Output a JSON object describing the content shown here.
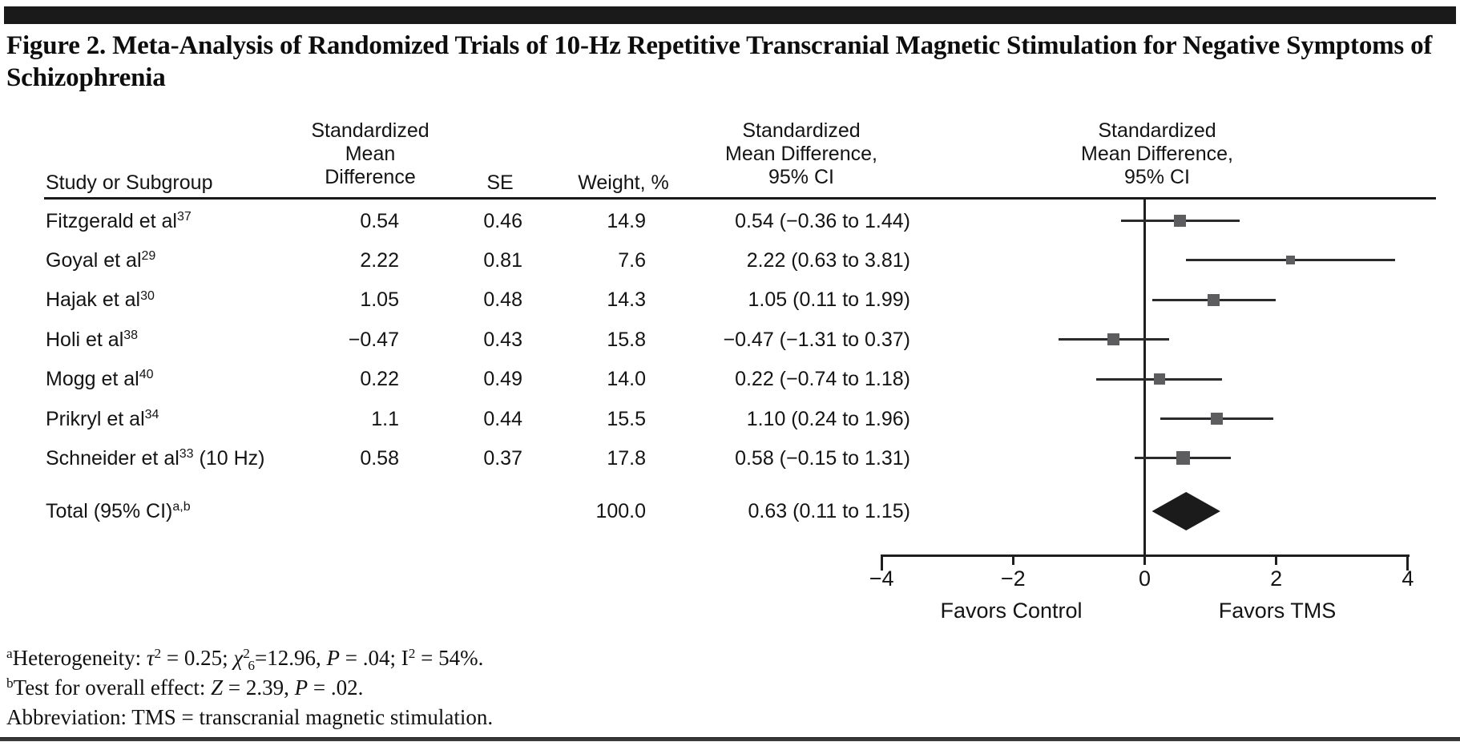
{
  "title": "Figure 2. Meta-Analysis of Randomized Trials of 10-Hz Repetitive Transcranial Magnetic Stimulation for Negative Symptoms of Schizophrenia",
  "table": {
    "headers": {
      "study": "Study or Subgroup",
      "smd": "Standardized\nMean\nDifference",
      "se": "SE",
      "weight": "Weight, %",
      "ci_text": "Standardized\nMean Difference,\n95% CI",
      "ci_plot": "Standardized\nMean Difference,\n95% CI"
    },
    "rows": [
      {
        "study": "Fitzgerald et al",
        "ref": "37",
        "suffix": "",
        "smd": "0.54",
        "se": "0.46",
        "weight": "14.9",
        "ci": "0.54 (−0.36 to 1.44)"
      },
      {
        "study": "Goyal et al",
        "ref": "29",
        "suffix": "",
        "smd": "2.22",
        "se": "0.81",
        "weight": "7.6",
        "ci": "2.22 (0.63 to 3.81)"
      },
      {
        "study": "Hajak et al",
        "ref": "30",
        "suffix": "",
        "smd": "1.05",
        "se": "0.48",
        "weight": "14.3",
        "ci": "1.05 (0.11 to 1.99)"
      },
      {
        "study": "Holi et al",
        "ref": "38",
        "suffix": "",
        "smd": "−0.47",
        "se": "0.43",
        "weight": "15.8",
        "ci": "−0.47 (−1.31 to 0.37)"
      },
      {
        "study": "Mogg et al",
        "ref": "40",
        "suffix": "",
        "smd": "0.22",
        "se": "0.49",
        "weight": "14.0",
        "ci": "0.22 (−0.74 to 1.18)"
      },
      {
        "study": "Prikryl et al",
        "ref": "34",
        "suffix": "",
        "smd": "1.1",
        "se": "0.44",
        "weight": "15.5",
        "ci": "1.10 (0.24 to 1.96)"
      },
      {
        "study": "Schneider et al",
        "ref": "33",
        "suffix": " (10 Hz)",
        "smd": "0.58",
        "se": "0.37",
        "weight": "17.8",
        "ci": "0.58 (−0.15 to 1.31)"
      }
    ],
    "total": {
      "label": "Total (95% CI)",
      "marks": "a,b",
      "weight": "100.0",
      "ci": "0.63 (0.11 to 1.15)"
    }
  },
  "chart_data": {
    "type": "scatter",
    "subtype": "forest-plot",
    "title": "Standardized Mean Difference, 95% CI",
    "xlim": [
      -4,
      4
    ],
    "x_ticks": [
      -4,
      -2,
      0,
      2,
      4
    ],
    "x_tick_labels": [
      "−4",
      "−2",
      "0",
      "2",
      "4"
    ],
    "zero_line": 0,
    "left_direction_label": "Favors Control",
    "right_direction_label": "Favors TMS",
    "studies": [
      {
        "name": "Fitzgerald et al",
        "ref": "37",
        "est": 0.54,
        "se": 0.46,
        "weight": 14.9,
        "lo": -0.36,
        "hi": 1.44
      },
      {
        "name": "Goyal et al",
        "ref": "29",
        "est": 2.22,
        "se": 0.81,
        "weight": 7.6,
        "lo": 0.63,
        "hi": 3.81
      },
      {
        "name": "Hajak et al",
        "ref": "30",
        "est": 1.05,
        "se": 0.48,
        "weight": 14.3,
        "lo": 0.11,
        "hi": 1.99
      },
      {
        "name": "Holi et al",
        "ref": "38",
        "est": -0.47,
        "se": 0.43,
        "weight": 15.8,
        "lo": -1.31,
        "hi": 0.37
      },
      {
        "name": "Mogg et al",
        "ref": "40",
        "est": 0.22,
        "se": 0.49,
        "weight": 14.0,
        "lo": -0.74,
        "hi": 1.18
      },
      {
        "name": "Prikryl et al",
        "ref": "34",
        "est": 1.1,
        "se": 0.44,
        "weight": 15.5,
        "lo": 0.24,
        "hi": 1.96
      },
      {
        "name": "Schneider et al",
        "ref": "33",
        "suffix": " (10 Hz)",
        "est": 0.58,
        "se": 0.37,
        "weight": 17.8,
        "lo": -0.15,
        "hi": 1.31
      }
    ],
    "total": {
      "label": "Total (95% CI)",
      "est": 0.63,
      "lo": 0.11,
      "hi": 1.15,
      "weight": 100.0
    }
  },
  "footnotes": [
    [
      {
        "t": "a",
        "f": "sup"
      },
      {
        "t": "Heterogeneity: "
      },
      {
        "t": "τ",
        "f": "i"
      },
      {
        "t": "2",
        "f": "sup"
      },
      {
        "t": " = 0.25; "
      },
      {
        "t": "χ",
        "f": "i"
      },
      {
        "t": "2",
        "f": "sup"
      },
      {
        "t": "6",
        "f": "sub"
      },
      {
        "t": "=12.96, "
      },
      {
        "t": "P",
        "f": "i"
      },
      {
        "t": " = .04; I"
      },
      {
        "t": "2",
        "f": "sup"
      },
      {
        "t": " = 54%."
      }
    ],
    [
      {
        "t": "b",
        "f": "sup"
      },
      {
        "t": "Test for overall effect: "
      },
      {
        "t": "Z",
        "f": "i"
      },
      {
        "t": " = 2.39, "
      },
      {
        "t": "P",
        "f": "i"
      },
      {
        "t": " = .02."
      }
    ],
    [
      {
        "t": "Abbreviation: TMS = transcranial magnetic stimulation."
      }
    ]
  ],
  "colors": {
    "square": "#5d5d5f",
    "ci_line": "#2b2b2b",
    "diamond": "#1b1b1b",
    "rule": "#1a1a1a"
  }
}
